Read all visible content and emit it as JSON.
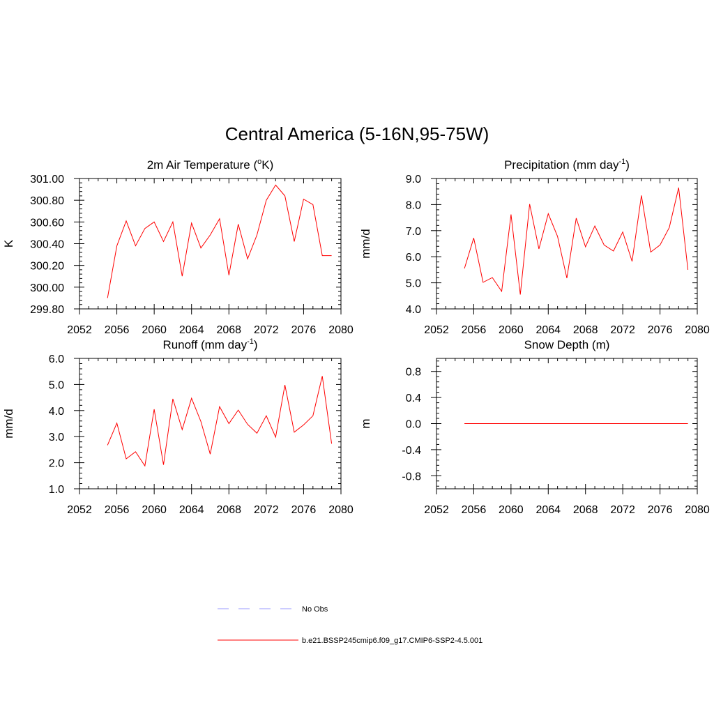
{
  "page_title": "Central America (5-16N,95-75W)",
  "legend": {
    "items": [
      {
        "label": "No Obs",
        "color": "#9999ff",
        "dash": true
      },
      {
        "label": "b.e21.BSSP245cmip6.f09_g17.CMIP6-SSP2-4.5.001",
        "color": "#ff0000",
        "dash": false
      }
    ]
  },
  "chart_data": [
    {
      "type": "line",
      "title": "2m Air Temperature (",
      "title_sup": "o",
      "title_after": "K)",
      "xlabel": "",
      "ylabel": "K",
      "xlim": [
        2052,
        2080
      ],
      "ylim": [
        299.8,
        301.0
      ],
      "xticks": [
        2052,
        2056,
        2060,
        2064,
        2068,
        2072,
        2076,
        2080
      ],
      "xtick_labels": [
        "2052",
        "2056",
        "2060",
        "2064",
        "2068",
        "2072",
        "2076",
        "2080"
      ],
      "yticks": [
        299.8,
        300.0,
        300.2,
        300.4,
        300.6,
        300.8,
        301.0
      ],
      "ytick_labels": [
        "299.80",
        "300.00",
        "300.20",
        "300.40",
        "300.60",
        "300.80",
        "301.00"
      ],
      "color": "#ff0000",
      "x": [
        2055,
        2056,
        2057,
        2058,
        2059,
        2060,
        2061,
        2062,
        2063,
        2064,
        2065,
        2066,
        2067,
        2068,
        2069,
        2070,
        2071,
        2072,
        2073,
        2074,
        2075,
        2076,
        2077,
        2078,
        2079
      ],
      "y": [
        299.9,
        300.38,
        300.61,
        300.38,
        300.54,
        300.6,
        300.42,
        300.6,
        300.1,
        300.59,
        300.36,
        300.48,
        300.63,
        300.11,
        300.58,
        300.26,
        300.48,
        300.8,
        300.94,
        300.84,
        300.42,
        300.81,
        300.76,
        300.29,
        300.29
      ]
    },
    {
      "type": "line",
      "title": "Precipitation (mm day",
      "title_sup": "-1",
      "title_after": ")",
      "xlabel": "",
      "ylabel": "mm/d",
      "xlim": [
        2052,
        2080
      ],
      "ylim": [
        4.0,
        9.0
      ],
      "xticks": [
        2052,
        2056,
        2060,
        2064,
        2068,
        2072,
        2076,
        2080
      ],
      "xtick_labels": [
        "2052",
        "2056",
        "2060",
        "2064",
        "2068",
        "2072",
        "2076",
        "2080"
      ],
      "yticks": [
        4.0,
        5.0,
        6.0,
        7.0,
        8.0,
        9.0
      ],
      "ytick_labels": [
        "4.0",
        "5.0",
        "6.0",
        "7.0",
        "8.0",
        "9.0"
      ],
      "color": "#ff0000",
      "x": [
        2055,
        2056,
        2057,
        2058,
        2059,
        2060,
        2061,
        2062,
        2063,
        2064,
        2065,
        2066,
        2067,
        2068,
        2069,
        2070,
        2071,
        2072,
        2073,
        2074,
        2075,
        2076,
        2077,
        2078,
        2079
      ],
      "y": [
        5.55,
        6.72,
        5.02,
        5.2,
        4.67,
        7.62,
        4.55,
        8.02,
        6.3,
        7.65,
        6.78,
        5.18,
        7.48,
        6.38,
        7.18,
        6.45,
        6.22,
        6.95,
        5.82,
        8.35,
        6.18,
        6.45,
        7.12,
        8.65,
        5.5
      ]
    },
    {
      "type": "line",
      "title": "Runoff (mm day",
      "title_sup": "-1",
      "title_after": ")",
      "xlabel": "",
      "ylabel": "mm/d",
      "xlim": [
        2052,
        2080
      ],
      "ylim": [
        1.0,
        6.0
      ],
      "xticks": [
        2052,
        2056,
        2060,
        2064,
        2068,
        2072,
        2076,
        2080
      ],
      "xtick_labels": [
        "2052",
        "2056",
        "2060",
        "2064",
        "2068",
        "2072",
        "2076",
        "2080"
      ],
      "yticks": [
        1.0,
        2.0,
        3.0,
        4.0,
        5.0,
        6.0
      ],
      "ytick_labels": [
        "1.0",
        "2.0",
        "3.0",
        "4.0",
        "5.0",
        "6.0"
      ],
      "color": "#ff0000",
      "x": [
        2055,
        2056,
        2057,
        2058,
        2059,
        2060,
        2061,
        2062,
        2063,
        2064,
        2065,
        2066,
        2067,
        2068,
        2069,
        2070,
        2071,
        2072,
        2073,
        2074,
        2075,
        2076,
        2077,
        2078,
        2079
      ],
      "y": [
        2.67,
        3.52,
        2.15,
        2.42,
        1.88,
        4.05,
        1.92,
        4.45,
        3.27,
        4.47,
        3.58,
        2.33,
        4.15,
        3.5,
        4.02,
        3.47,
        3.13,
        3.8,
        2.98,
        4.98,
        3.17,
        3.45,
        3.8,
        5.32,
        2.73
      ]
    },
    {
      "type": "line",
      "title": "Snow Depth (m)",
      "title_sup": "",
      "title_after": "",
      "xlabel": "",
      "ylabel": "m",
      "xlim": [
        2052,
        2080
      ],
      "ylim": [
        -1.0,
        1.0
      ],
      "xticks": [
        2052,
        2056,
        2060,
        2064,
        2068,
        2072,
        2076,
        2080
      ],
      "xtick_labels": [
        "2052",
        "2056",
        "2060",
        "2064",
        "2068",
        "2072",
        "2076",
        "2080"
      ],
      "yticks": [
        -0.8,
        -0.4,
        0.0,
        0.4,
        0.8
      ],
      "ytick_labels": [
        "-0.8",
        "-0.4",
        "0.0",
        "0.4",
        "0.8"
      ],
      "color": "#ff0000",
      "x": [
        2055,
        2056,
        2057,
        2058,
        2059,
        2060,
        2061,
        2062,
        2063,
        2064,
        2065,
        2066,
        2067,
        2068,
        2069,
        2070,
        2071,
        2072,
        2073,
        2074,
        2075,
        2076,
        2077,
        2078,
        2079
      ],
      "y": [
        0,
        0,
        0,
        0,
        0,
        0,
        0,
        0,
        0,
        0,
        0,
        0,
        0,
        0,
        0,
        0,
        0,
        0,
        0,
        0,
        0,
        0,
        0,
        0,
        0
      ]
    }
  ]
}
